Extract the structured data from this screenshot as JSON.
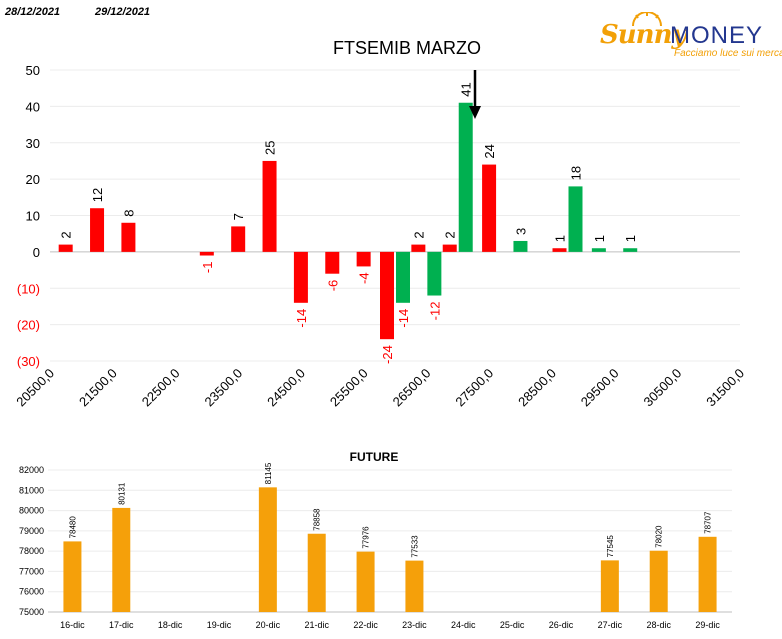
{
  "header": {
    "date_left": "28/12/2021",
    "date_right": "29/12/2021"
  },
  "logo": {
    "brand_part1": "Sunny",
    "brand_part2": "MONEY",
    "tagline": "Facciamo luce sui mercati"
  },
  "colors": {
    "red": "#ff0000",
    "green": "#00b050",
    "orange": "#f5a00a",
    "navy": "#23378f"
  },
  "chart_data": [
    {
      "type": "bar",
      "title": "FTSEMIB MARZO",
      "ylim": [
        -30,
        50
      ],
      "yticks": [
        "50",
        "40",
        "30",
        "20",
        "10",
        "0",
        "(10)",
        "(20)",
        "(30)"
      ],
      "ytick_values": [
        50,
        40,
        30,
        20,
        10,
        0,
        -10,
        -20,
        -30
      ],
      "xtick_labels": [
        "20500,0",
        "21500,0",
        "22500,0",
        "23500,0",
        "24500,0",
        "25500,0",
        "26500,0",
        "27500,0",
        "28500,0",
        "29500,0",
        "30500,0",
        "31500,0"
      ],
      "xtick_values": [
        20500,
        21500,
        22500,
        23500,
        24500,
        25500,
        26500,
        27500,
        28500,
        29500,
        30500,
        31500
      ],
      "grid": true,
      "annotation": "down-arrow at 27000",
      "series": [
        {
          "color": "red",
          "points": [
            {
              "x": 20750,
              "y": 2,
              "label": "2"
            },
            {
              "x": 21250,
              "y": 12,
              "label": "12"
            },
            {
              "x": 21750,
              "y": 8,
              "label": "8"
            },
            {
              "x": 23000,
              "y": -1,
              "label": "-1"
            },
            {
              "x": 23500,
              "y": 7,
              "label": "7"
            },
            {
              "x": 24000,
              "y": 25,
              "label": "25"
            },
            {
              "x": 24500,
              "y": -14,
              "label": "-14"
            },
            {
              "x": 25000,
              "y": -6,
              "label": "-6"
            },
            {
              "x": 25500,
              "y": -4,
              "label": "-4"
            },
            {
              "x": 26000,
              "y": -24,
              "label": "-24"
            },
            {
              "x": 26500,
              "y": 2,
              "label": "2"
            },
            {
              "x": 27000,
              "y": 2,
              "label": "2"
            },
            {
              "x": 27500,
              "y": 24,
              "label": "24"
            },
            {
              "x": 28750,
              "y": 1,
              "label": "1"
            }
          ]
        },
        {
          "color": "green",
          "points": [
            {
              "x": 26000,
              "y": -14,
              "label": "-14"
            },
            {
              "x": 26500,
              "y": -12,
              "label": "-12"
            },
            {
              "x": 27000,
              "y": 41,
              "label": "41"
            },
            {
              "x": 28000,
              "y": 3,
              "label": "3"
            },
            {
              "x": 28750,
              "y": 18,
              "label": "18"
            },
            {
              "x": 29250,
              "y": 1,
              "label": "1"
            },
            {
              "x": 29750,
              "y": 1,
              "label": "1"
            }
          ]
        }
      ]
    },
    {
      "type": "bar",
      "title": "FUTURE",
      "ylim": [
        75000,
        82000
      ],
      "yticks": [
        82000,
        81000,
        80000,
        79000,
        78000,
        77000,
        76000,
        75000
      ],
      "categories": [
        "16-dic",
        "17-dic",
        "18-dic",
        "19-dic",
        "20-dic",
        "21-dic",
        "22-dic",
        "23-dic",
        "24-dic",
        "25-dic",
        "26-dic",
        "27-dic",
        "28-dic",
        "29-dic"
      ],
      "values": [
        78480,
        80131,
        null,
        null,
        81145,
        78858,
        77976,
        77533,
        null,
        null,
        null,
        77545,
        78020,
        78707
      ],
      "grid": true
    }
  ]
}
